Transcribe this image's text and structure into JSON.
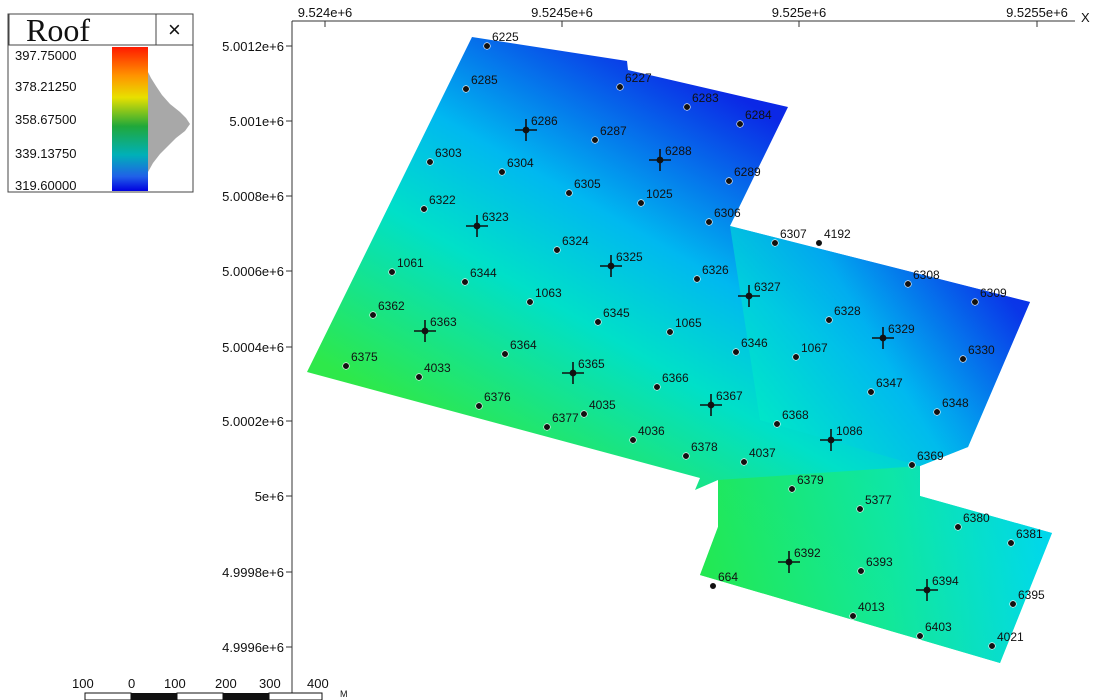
{
  "legend": {
    "title": "Roof",
    "close_glyph": "×",
    "values": [
      "397.75000",
      "378.21250",
      "358.67500",
      "339.13750",
      "319.60000"
    ],
    "colormap": [
      "#ff1a00",
      "#ff8a00",
      "#f2e600",
      "#28b828",
      "#00a8b0",
      "#1a5ce6",
      "#0000e6"
    ]
  },
  "axes": {
    "x_ticks": [
      "9.524e+6",
      "9.5245e+6",
      "9.525e+6",
      "9.5255e+6"
    ],
    "x_label": "X",
    "y_ticks": [
      "5.0012e+6",
      "5.001e+6",
      "5.0008e+6",
      "5.0006e+6",
      "5.0004e+6",
      "5.0002e+6",
      "5e+6",
      "4.9998e+6",
      "4.9996e+6"
    ]
  },
  "scalebar": {
    "labels": [
      "100",
      "0",
      "100",
      "200",
      "300",
      "400"
    ],
    "unit": "M"
  },
  "wells": [
    {
      "id": "6225",
      "type": "dot"
    },
    {
      "id": "6285",
      "type": "dot"
    },
    {
      "id": "6227",
      "type": "dot"
    },
    {
      "id": "6283",
      "type": "dot"
    },
    {
      "id": "6284",
      "type": "dot"
    },
    {
      "id": "6286",
      "type": "cross"
    },
    {
      "id": "6287",
      "type": "dot"
    },
    {
      "id": "6288",
      "type": "cross"
    },
    {
      "id": "6303",
      "type": "dot"
    },
    {
      "id": "6304",
      "type": "dot"
    },
    {
      "id": "6289",
      "type": "dot"
    },
    {
      "id": "6305",
      "type": "dot"
    },
    {
      "id": "1025",
      "type": "dot"
    },
    {
      "id": "6322",
      "type": "dot"
    },
    {
      "id": "6323",
      "type": "cross"
    },
    {
      "id": "6306",
      "type": "dot"
    },
    {
      "id": "6307",
      "type": "dot"
    },
    {
      "id": "4192",
      "type": "dot"
    },
    {
      "id": "6324",
      "type": "dot"
    },
    {
      "id": "6325",
      "type": "cross"
    },
    {
      "id": "1061",
      "type": "dot"
    },
    {
      "id": "6344",
      "type": "dot"
    },
    {
      "id": "6326",
      "type": "dot"
    },
    {
      "id": "6327",
      "type": "cross"
    },
    {
      "id": "6308",
      "type": "dot"
    },
    {
      "id": "6309",
      "type": "dot"
    },
    {
      "id": "1063",
      "type": "dot"
    },
    {
      "id": "6362",
      "type": "dot"
    },
    {
      "id": "6363",
      "type": "cross"
    },
    {
      "id": "6345",
      "type": "dot"
    },
    {
      "id": "1065",
      "type": "dot"
    },
    {
      "id": "6328",
      "type": "dot"
    },
    {
      "id": "6329",
      "type": "cross"
    },
    {
      "id": "6364",
      "type": "dot"
    },
    {
      "id": "6346",
      "type": "dot"
    },
    {
      "id": "1067",
      "type": "dot"
    },
    {
      "id": "6330",
      "type": "dot"
    },
    {
      "id": "6375",
      "type": "dot"
    },
    {
      "id": "4033",
      "type": "dot"
    },
    {
      "id": "6365",
      "type": "cross"
    },
    {
      "id": "6366",
      "type": "dot"
    },
    {
      "id": "6347",
      "type": "dot"
    },
    {
      "id": "6376",
      "type": "dot"
    },
    {
      "id": "6367",
      "type": "cross"
    },
    {
      "id": "6348",
      "type": "dot"
    },
    {
      "id": "4035",
      "type": "dot"
    },
    {
      "id": "6377",
      "type": "dot"
    },
    {
      "id": "6368",
      "type": "dot"
    },
    {
      "id": "1086",
      "type": "cross"
    },
    {
      "id": "4036",
      "type": "dot"
    },
    {
      "id": "6378",
      "type": "dot"
    },
    {
      "id": "4037",
      "type": "dot"
    },
    {
      "id": "6369",
      "type": "dot"
    },
    {
      "id": "6379",
      "type": "dot"
    },
    {
      "id": "5377",
      "type": "dot"
    },
    {
      "id": "6380",
      "type": "dot"
    },
    {
      "id": "6381",
      "type": "dot"
    },
    {
      "id": "6392",
      "type": "cross"
    },
    {
      "id": "6393",
      "type": "dot"
    },
    {
      "id": "664",
      "type": "dot"
    },
    {
      "id": "6394",
      "type": "cross"
    },
    {
      "id": "6395",
      "type": "dot"
    },
    {
      "id": "4013",
      "type": "dot"
    },
    {
      "id": "6403",
      "type": "dot"
    },
    {
      "id": "4021",
      "type": "dot"
    }
  ]
}
